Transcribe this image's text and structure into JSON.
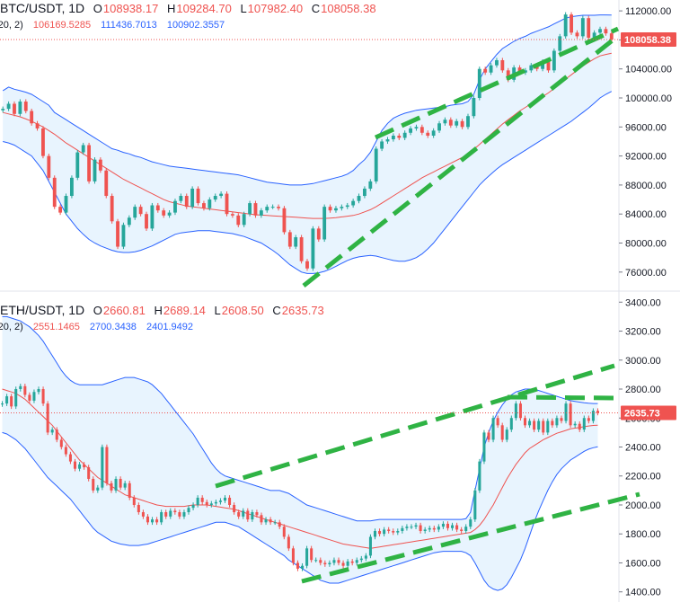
{
  "chart_data": [
    {
      "type": "candlestick",
      "symbol": "BTC/USDT",
      "interval": "1D",
      "ohlc": {
        "o_label": "O",
        "o": "108938.17",
        "h_label": "H",
        "h": "109284.70",
        "l_label": "L",
        "l": "107982.40",
        "c_label": "C",
        "c": "108058.38"
      },
      "indicator": {
        "params": "(20, 2)",
        "basis": "106169.5285",
        "upper": "111436.7013",
        "lower": "100902.3557"
      },
      "last_price": "108058.38",
      "last_price_value": 108058.38,
      "y_ticks": [
        "76000.00",
        "80000.00",
        "84000.00",
        "88000.00",
        "92000.00",
        "96000.00",
        "100000.00",
        "104000.00",
        "108000.00",
        "112000.00"
      ],
      "ylim": [
        73500,
        113500
      ],
      "closes": [
        98500,
        99200,
        97800,
        99500,
        98200,
        96500,
        95800,
        92000,
        89000,
        85000,
        84200,
        86500,
        89000,
        92500,
        93500,
        88500,
        91500,
        90000,
        86500,
        83000,
        79500,
        82500,
        83500,
        85000,
        84000,
        82000,
        85200,
        84500,
        83800,
        84200,
        85800,
        86500,
        85000,
        87500,
        85500,
        84800,
        86000,
        86500,
        86800,
        84000,
        83800,
        82500,
        84000,
        85500,
        83800,
        84500,
        85000,
        85000,
        84800,
        81500,
        79500,
        80800,
        77500,
        76500,
        82000,
        80500,
        85000,
        84500,
        84800,
        85000,
        85200,
        85800,
        86500,
        87500,
        88500,
        93000,
        94000,
        94300,
        94800,
        94500,
        95200,
        95800,
        96000,
        95200,
        94800,
        95500,
        96500,
        97000,
        96200,
        96800,
        96000,
        97500,
        100000,
        104000,
        103500,
        104500,
        105200,
        103800,
        102500,
        104200,
        103500,
        103800,
        104500,
        104000,
        105000,
        103800,
        106500,
        108500,
        111500,
        109000,
        108500,
        111000,
        108300,
        109000,
        109500,
        108900,
        108058
      ],
      "series": [
        {
          "name": "upper",
          "values": [
            101000,
            101500,
            101200,
            101000,
            100800,
            100500,
            100000,
            99500,
            99000,
            98000,
            97500,
            97000,
            96500,
            96000,
            95500,
            95000,
            94500,
            94000,
            93500,
            93000,
            92800,
            92500,
            92300,
            92000,
            91800,
            91500,
            91200,
            91000,
            90800,
            90600,
            90500,
            90400,
            90300,
            90200,
            90100,
            90000,
            89900,
            89800,
            89700,
            89600,
            89500,
            89400,
            89200,
            89000,
            88800,
            88600,
            88400,
            88300,
            88200,
            88100,
            88000,
            88000,
            88000,
            88100,
            88200,
            88400,
            88600,
            88800,
            89000,
            89200,
            89500,
            90000,
            90800,
            91500,
            92500,
            94000,
            95500,
            96500,
            97200,
            97600,
            97900,
            98100,
            98300,
            98400,
            98500,
            98600,
            98700,
            98800,
            99000,
            99100,
            99200,
            99500,
            100500,
            102500,
            104000,
            105000,
            106000,
            106800,
            107300,
            107800,
            108200,
            108500,
            108900,
            109200,
            109500,
            109800,
            110200,
            110600,
            111000,
            111200,
            111300,
            111400,
            111400,
            111400,
            111450,
            111440,
            111437
          ]
        },
        {
          "name": "basis",
          "values": [
            98000,
            97800,
            97600,
            97400,
            97100,
            96800,
            96400,
            96000,
            95500,
            95000,
            94400,
            93800,
            93300,
            92800,
            92300,
            91800,
            91300,
            90800,
            90300,
            89800,
            89300,
            88800,
            88400,
            88000,
            87600,
            87200,
            86800,
            86400,
            86000,
            85700,
            85500,
            85300,
            85100,
            85000,
            84900,
            84800,
            84700,
            84600,
            84500,
            84400,
            84300,
            84200,
            84100,
            84000,
            83900,
            83850,
            83800,
            83750,
            83700,
            83650,
            83600,
            83550,
            83500,
            83450,
            83400,
            83400,
            83400,
            83450,
            83500,
            83600,
            83700,
            83800,
            84000,
            84300,
            84600,
            85000,
            85500,
            86000,
            86500,
            87000,
            87500,
            88000,
            88500,
            89000,
            89400,
            89800,
            90200,
            90600,
            91000,
            91400,
            91800,
            92300,
            92900,
            93600,
            94300,
            95000,
            95700,
            96400,
            97000,
            97600,
            98200,
            98700,
            99200,
            99700,
            100200,
            100700,
            101300,
            101900,
            102600,
            103200,
            103800,
            104400,
            104900,
            105400,
            105800,
            106000,
            106170
          ]
        },
        {
          "name": "lower",
          "values": [
            94000,
            93800,
            93500,
            93000,
            92500,
            92000,
            91000,
            90000,
            88500,
            87000,
            85500,
            84000,
            83000,
            82000,
            81200,
            80500,
            80000,
            79600,
            79300,
            79000,
            78800,
            78700,
            78700,
            78800,
            79000,
            79300,
            79600,
            80000,
            80400,
            80800,
            81200,
            81400,
            81500,
            81600,
            81700,
            81700,
            81700,
            81600,
            81500,
            81400,
            81300,
            81100,
            80900,
            80600,
            80300,
            80000,
            79500,
            79000,
            78400,
            77700,
            77000,
            76500,
            76000,
            75800,
            75800,
            75900,
            76100,
            76400,
            76800,
            77200,
            77600,
            77900,
            78100,
            78200,
            78300,
            78200,
            78000,
            77800,
            77600,
            77500,
            77500,
            77700,
            78000,
            78500,
            79200,
            80000,
            81000,
            82000,
            83000,
            84000,
            85000,
            86000,
            87000,
            88000,
            88800,
            89500,
            90200,
            90800,
            91300,
            91800,
            92300,
            92800,
            93300,
            93800,
            94300,
            94800,
            95300,
            95800,
            96300,
            96800,
            97400,
            98000,
            98600,
            99300,
            100000,
            100500,
            100902
          ]
        }
      ]
    },
    {
      "type": "candlestick",
      "symbol": "ETH/USDT",
      "interval": "1D",
      "ohlc": {
        "o_label": "O",
        "o": "2660.81",
        "h_label": "H",
        "h": "2689.14",
        "l_label": "L",
        "l": "2608.50",
        "c_label": "C",
        "c": "2635.73"
      },
      "indicator": {
        "params": "(20, 2)",
        "basis": "2551.1465",
        "upper": "2700.3438",
        "lower": "2401.9492"
      },
      "last_price": "2635.73",
      "last_price_value": 2635.73,
      "y_ticks": [
        "1400.00",
        "1600.00",
        "1800.00",
        "2000.00",
        "2200.00",
        "2400.00",
        "2600.00",
        "2800.00",
        "3000.00",
        "3200.00",
        "3400.00"
      ],
      "ylim": [
        1330,
        3470
      ],
      "closes": [
        2700,
        2750,
        2680,
        2800,
        2820,
        2760,
        2720,
        2780,
        2800,
        2700,
        2500,
        2520,
        2450,
        2400,
        2350,
        2300,
        2250,
        2280,
        2260,
        2180,
        2100,
        2120,
        2400,
        2150,
        2100,
        2180,
        2120,
        2150,
        2050,
        2000,
        1950,
        1920,
        1880,
        1900,
        1880,
        1950,
        1920,
        1960,
        1950,
        1920,
        1950,
        1980,
        2000,
        2050,
        2020,
        2000,
        2010,
        2020,
        2030,
        2050,
        2000,
        1950,
        1920,
        1960,
        1900,
        1950,
        1930,
        1880,
        1900,
        1880,
        1880,
        1850,
        1780,
        1700,
        1600,
        1560,
        1580,
        1700,
        1620,
        1620,
        1600,
        1590,
        1600,
        1620,
        1600,
        1580,
        1610,
        1600,
        1620,
        1630,
        1650,
        1780,
        1820,
        1800,
        1830,
        1820,
        1810,
        1820,
        1840,
        1850,
        1850,
        1860,
        1820,
        1830,
        1840,
        1830,
        1850,
        1870,
        1840,
        1860,
        1830,
        1820,
        1850,
        1900,
        2100,
        2300,
        2500,
        2450,
        2600,
        2550,
        2450,
        2520,
        2600,
        2700,
        2600,
        2550,
        2580,
        2520,
        2580,
        2500,
        2580,
        2550,
        2600,
        2580,
        2700,
        2550,
        2560,
        2520,
        2600,
        2580,
        2650,
        2636
      ],
      "series": [
        {
          "name": "upper",
          "values": [
            3300,
            3300,
            3290,
            3280,
            3270,
            3250,
            3230,
            3200,
            3170,
            3130,
            3080,
            3030,
            2980,
            2930,
            2890,
            2860,
            2840,
            2830,
            2830,
            2830,
            2830,
            2830,
            2830,
            2840,
            2850,
            2860,
            2870,
            2880,
            2880,
            2880,
            2870,
            2860,
            2850,
            2830,
            2800,
            2770,
            2730,
            2690,
            2650,
            2610,
            2570,
            2530,
            2490,
            2440,
            2390,
            2340,
            2290,
            2250,
            2220,
            2200,
            2190,
            2180,
            2170,
            2160,
            2150,
            2140,
            2130,
            2120,
            2110,
            2100,
            2100,
            2100,
            2090,
            2080,
            2060,
            2040,
            2020,
            2000,
            1990,
            1980,
            1970,
            1960,
            1950,
            1940,
            1930,
            1920,
            1910,
            1900,
            1890,
            1890,
            1890,
            1890,
            1895,
            1900,
            1900,
            1900,
            1900,
            1900,
            1900,
            1900,
            1900,
            1900,
            1900,
            1900,
            1900,
            1900,
            1900,
            1900,
            1900,
            1900,
            1900,
            1900,
            1905,
            1950,
            2100,
            2250,
            2400,
            2500,
            2580,
            2640,
            2690,
            2730,
            2760,
            2780,
            2790,
            2800,
            2800,
            2800,
            2790,
            2780,
            2770,
            2760,
            2750,
            2740,
            2730,
            2720,
            2715,
            2710,
            2705,
            2702,
            2700,
            2700
          ]
        },
        {
          "name": "basis",
          "values": [
            2800,
            2790,
            2780,
            2770,
            2750,
            2730,
            2700,
            2670,
            2640,
            2610,
            2580,
            2550,
            2510,
            2470,
            2430,
            2390,
            2350,
            2310,
            2280,
            2250,
            2220,
            2190,
            2170,
            2150,
            2130,
            2110,
            2090,
            2070,
            2060,
            2050,
            2040,
            2030,
            2020,
            2010,
            2000,
            1995,
            1990,
            1990,
            1990,
            1990,
            1990,
            1995,
            2000,
            2000,
            2000,
            2000,
            1995,
            1990,
            1985,
            1980,
            1975,
            1970,
            1960,
            1950,
            1940,
            1930,
            1920,
            1910,
            1900,
            1890,
            1880,
            1870,
            1860,
            1850,
            1840,
            1830,
            1820,
            1810,
            1800,
            1790,
            1780,
            1770,
            1760,
            1750,
            1740,
            1730,
            1725,
            1720,
            1715,
            1710,
            1705,
            1700,
            1705,
            1710,
            1715,
            1720,
            1725,
            1730,
            1735,
            1740,
            1745,
            1750,
            1755,
            1760,
            1765,
            1770,
            1775,
            1780,
            1785,
            1790,
            1795,
            1800,
            1805,
            1810,
            1830,
            1860,
            1900,
            1950,
            2000,
            2060,
            2120,
            2180,
            2230,
            2280,
            2320,
            2360,
            2390,
            2410,
            2430,
            2450,
            2465,
            2480,
            2495,
            2505,
            2515,
            2525,
            2530,
            2535,
            2540,
            2545,
            2549,
            2551
          ]
        },
        {
          "name": "lower",
          "values": [
            2500,
            2490,
            2470,
            2450,
            2420,
            2390,
            2350,
            2310,
            2270,
            2230,
            2190,
            2160,
            2130,
            2100,
            2070,
            2040,
            2000,
            1960,
            1920,
            1880,
            1840,
            1810,
            1790,
            1770,
            1750,
            1740,
            1730,
            1725,
            1720,
            1720,
            1720,
            1725,
            1730,
            1740,
            1750,
            1760,
            1770,
            1780,
            1790,
            1800,
            1810,
            1820,
            1830,
            1840,
            1850,
            1860,
            1870,
            1880,
            1880,
            1880,
            1870,
            1860,
            1850,
            1830,
            1810,
            1790,
            1770,
            1750,
            1730,
            1710,
            1690,
            1670,
            1650,
            1620,
            1600,
            1580,
            1560,
            1540,
            1520,
            1500,
            1480,
            1470,
            1460,
            1460,
            1460,
            1470,
            1480,
            1490,
            1500,
            1510,
            1520,
            1530,
            1540,
            1550,
            1560,
            1570,
            1580,
            1590,
            1600,
            1610,
            1620,
            1630,
            1640,
            1650,
            1660,
            1670,
            1675,
            1680,
            1680,
            1680,
            1680,
            1680,
            1670,
            1650,
            1600,
            1540,
            1480,
            1440,
            1420,
            1410,
            1420,
            1450,
            1500,
            1560,
            1620,
            1700,
            1790,
            1880,
            1960,
            2030,
            2100,
            2160,
            2210,
            2250,
            2280,
            2310,
            2330,
            2350,
            2370,
            2385,
            2395,
            2402
          ]
        }
      ]
    }
  ]
}
